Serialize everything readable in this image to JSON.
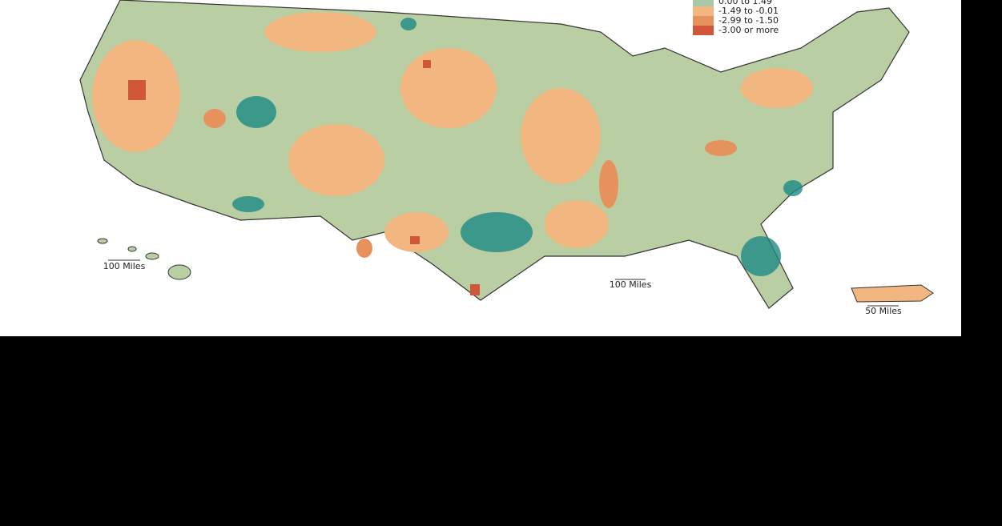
{
  "legend": {
    "items": [
      {
        "label": "0.00 to 1.49",
        "color": "#a9c9a6"
      },
      {
        "label": "-1.49 to -0.01",
        "color": "#f2b780"
      },
      {
        "label": "-2.99 to -1.50",
        "color": "#e6925c"
      },
      {
        "label": "-3.00 or more",
        "color": "#d0573a"
      }
    ]
  },
  "scale_bars": {
    "hawaii": "100 Miles",
    "mainland": "100 Miles",
    "puerto_rico": "50 Miles"
  }
}
